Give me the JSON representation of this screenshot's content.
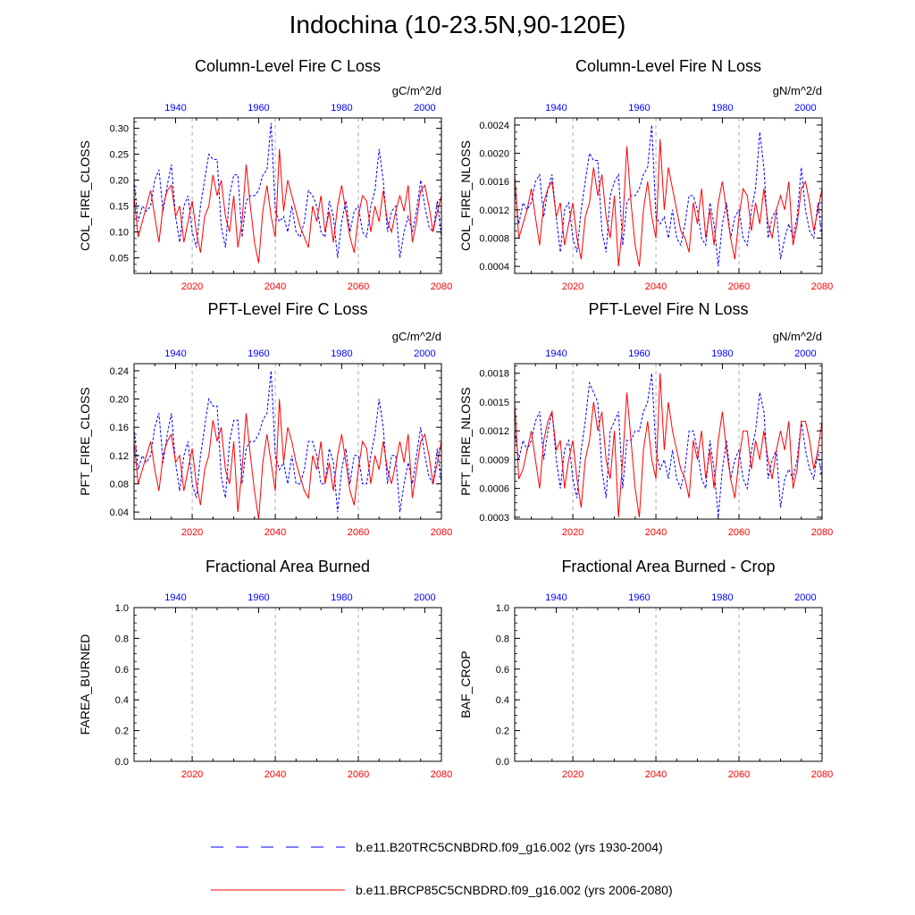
{
  "title": "Indochina (10-23.5N,90-120E)",
  "colors": {
    "blue": "#0000ff",
    "red": "#ff0000",
    "grid": "#999999"
  },
  "legend": {
    "blue_label": "b.e11.B20TRC5CNBDRD.f09_g16.002 (yrs 1930-2004)",
    "red_label": "b.e11.BRCP85C5CNBDRD.f09_g16.002 (yrs 2006-2080)"
  },
  "chart_data": [
    {
      "type": "line",
      "title": "Column-Level Fire C Loss",
      "units": "gC/m^2/d",
      "ylabel": "COL_FIRE_CLOSS",
      "ylim": [
        0.02,
        0.32
      ],
      "yticks": [
        0.05,
        0.1,
        0.15,
        0.2,
        0.25,
        0.3
      ],
      "ytick_labels": [
        "0.05",
        "0.10",
        "0.15",
        "0.20",
        "0.25",
        "0.30"
      ],
      "x_bottom": {
        "label_color": "red",
        "range": [
          2006,
          2080
        ],
        "ticks": [
          2020,
          2040,
          2060,
          2080
        ]
      },
      "x_top": {
        "label_color": "blue",
        "range": [
          1930,
          2004
        ],
        "ticks": [
          1940,
          1960,
          1980,
          2000
        ]
      },
      "gridlines_x": [
        2020,
        2040,
        2060
      ],
      "series": [
        {
          "color": "blue",
          "dash": true,
          "values": [
            0.2,
            0.12,
            0.15,
            0.14,
            0.15,
            0.2,
            0.22,
            0.14,
            0.19,
            0.23,
            0.13,
            0.08,
            0.15,
            0.17,
            0.1,
            0.07,
            0.15,
            0.2,
            0.25,
            0.24,
            0.24,
            0.11,
            0.07,
            0.17,
            0.21,
            0.21,
            0.09,
            0.16,
            0.17,
            0.17,
            0.18,
            0.21,
            0.22,
            0.31,
            0.14,
            0.12,
            0.13,
            0.1,
            0.15,
            0.1,
            0.09,
            0.12,
            0.18,
            0.17,
            0.15,
            0.1,
            0.09,
            0.16,
            0.13,
            0.05,
            0.12,
            0.16,
            0.1,
            0.14,
            0.15,
            0.1,
            0.09,
            0.15,
            0.18,
            0.26,
            0.2,
            0.1,
            0.14,
            0.15,
            0.05,
            0.1,
            0.13,
            0.1,
            0.14,
            0.2,
            0.15,
            0.11,
            0.1,
            0.16,
            0.09
          ]
        },
        {
          "color": "red",
          "dash": false,
          "values": [
            0.17,
            0.09,
            0.12,
            0.15,
            0.18,
            0.13,
            0.08,
            0.15,
            0.18,
            0.19,
            0.13,
            0.15,
            0.08,
            0.12,
            0.16,
            0.1,
            0.06,
            0.13,
            0.15,
            0.21,
            0.17,
            0.2,
            0.13,
            0.1,
            0.17,
            0.07,
            0.12,
            0.23,
            0.15,
            0.08,
            0.04,
            0.14,
            0.19,
            0.13,
            0.09,
            0.26,
            0.14,
            0.2,
            0.17,
            0.14,
            0.11,
            0.09,
            0.07,
            0.15,
            0.12,
            0.17,
            0.1,
            0.14,
            0.08,
            0.15,
            0.19,
            0.14,
            0.09,
            0.06,
            0.13,
            0.17,
            0.16,
            0.1,
            0.15,
            0.12,
            0.18,
            0.12,
            0.1,
            0.14,
            0.17,
            0.14,
            0.19,
            0.08,
            0.12,
            0.18,
            0.19,
            0.15,
            0.1,
            0.14,
            0.17
          ]
        }
      ]
    },
    {
      "type": "line",
      "title": "Column-Level Fire N Loss",
      "units": "gN/m^2/d",
      "ylabel": "COL_FIRE_NLOSS",
      "ylim": [
        0.0003,
        0.0025
      ],
      "yticks": [
        0.0004,
        0.0008,
        0.0012,
        0.0016,
        0.002,
        0.0024
      ],
      "ytick_labels": [
        "0.0004",
        "0.0008",
        "0.0012",
        "0.0016",
        "0.0020",
        "0.0024"
      ],
      "x_bottom": {
        "label_color": "red",
        "range": [
          2006,
          2080
        ],
        "ticks": [
          2020,
          2040,
          2060,
          2080
        ]
      },
      "x_top": {
        "label_color": "blue",
        "range": [
          1930,
          2004
        ],
        "ticks": [
          1940,
          1960,
          1980,
          2000
        ]
      },
      "gridlines_x": [
        2020,
        2040,
        2060
      ],
      "series": [
        {
          "color": "blue",
          "dash": true,
          "values": [
            0.0015,
            0.001,
            0.0013,
            0.0012,
            0.0013,
            0.0016,
            0.0017,
            0.0011,
            0.0015,
            0.0017,
            0.0011,
            0.0006,
            0.0012,
            0.0013,
            0.0008,
            0.0006,
            0.0012,
            0.0016,
            0.002,
            0.0019,
            0.0019,
            0.0009,
            0.0006,
            0.0014,
            0.0016,
            0.0017,
            0.0007,
            0.0013,
            0.0014,
            0.0014,
            0.0015,
            0.0017,
            0.0018,
            0.0024,
            0.0011,
            0.001,
            0.0011,
            0.0008,
            0.0012,
            0.0008,
            0.0007,
            0.001,
            0.0014,
            0.0014,
            0.0012,
            0.0008,
            0.0007,
            0.0013,
            0.001,
            0.0004,
            0.001,
            0.0013,
            0.0008,
            0.0011,
            0.0012,
            0.0008,
            0.0007,
            0.0012,
            0.0015,
            0.0023,
            0.0018,
            0.0008,
            0.0011,
            0.0012,
            0.0005,
            0.0008,
            0.001,
            0.0008,
            0.0011,
            0.0018,
            0.0012,
            0.0009,
            0.0008,
            0.0013,
            0.0008
          ]
        },
        {
          "color": "red",
          "dash": false,
          "values": [
            0.0017,
            0.0008,
            0.001,
            0.0012,
            0.0015,
            0.0011,
            0.0007,
            0.0013,
            0.0015,
            0.0016,
            0.0011,
            0.0013,
            0.0007,
            0.001,
            0.0013,
            0.0008,
            0.0005,
            0.0011,
            0.0013,
            0.0018,
            0.0014,
            0.0017,
            0.0011,
            0.0008,
            0.0014,
            0.0004,
            0.001,
            0.0021,
            0.0013,
            0.0007,
            0.0004,
            0.0012,
            0.0016,
            0.0011,
            0.0008,
            0.0022,
            0.0012,
            0.0018,
            0.0015,
            0.0012,
            0.0009,
            0.0008,
            0.0006,
            0.0013,
            0.001,
            0.0015,
            0.0008,
            0.0012,
            0.0007,
            0.0013,
            0.0016,
            0.0012,
            0.0008,
            0.0005,
            0.0011,
            0.0015,
            0.0014,
            0.0009,
            0.0013,
            0.001,
            0.0015,
            0.001,
            0.0008,
            0.0012,
            0.0014,
            0.0012,
            0.0016,
            0.0007,
            0.001,
            0.0015,
            0.0016,
            0.0013,
            0.0009,
            0.0012,
            0.0015
          ]
        }
      ]
    },
    {
      "type": "line",
      "title": "PFT-Level Fire C Loss",
      "units": "gC/m^2/d",
      "ylabel": "PFT_FIRE_CLOSS",
      "ylim": [
        0.03,
        0.25
      ],
      "yticks": [
        0.04,
        0.08,
        0.12,
        0.16,
        0.2,
        0.24
      ],
      "ytick_labels": [
        "0.04",
        "0.08",
        "0.12",
        "0.16",
        "0.20",
        "0.24"
      ],
      "x_bottom": {
        "label_color": "red",
        "range": [
          2006,
          2080
        ],
        "ticks": [
          2020,
          2040,
          2060,
          2080
        ]
      },
      "x_top": {
        "label_color": "blue",
        "range": [
          1930,
          2004
        ],
        "ticks": [
          1940,
          1960,
          1980,
          2000
        ]
      },
      "gridlines_x": [
        2020,
        2040,
        2060
      ],
      "series": [
        {
          "color": "blue",
          "dash": true,
          "values": [
            0.16,
            0.1,
            0.12,
            0.11,
            0.12,
            0.16,
            0.18,
            0.11,
            0.15,
            0.18,
            0.11,
            0.07,
            0.12,
            0.14,
            0.08,
            0.06,
            0.12,
            0.16,
            0.2,
            0.19,
            0.19,
            0.09,
            0.06,
            0.14,
            0.17,
            0.17,
            0.08,
            0.13,
            0.14,
            0.14,
            0.15,
            0.17,
            0.18,
            0.24,
            0.12,
            0.1,
            0.11,
            0.08,
            0.12,
            0.08,
            0.08,
            0.1,
            0.14,
            0.14,
            0.12,
            0.08,
            0.08,
            0.13,
            0.11,
            0.04,
            0.1,
            0.13,
            0.08,
            0.12,
            0.12,
            0.08,
            0.08,
            0.12,
            0.15,
            0.2,
            0.16,
            0.08,
            0.12,
            0.12,
            0.04,
            0.08,
            0.11,
            0.08,
            0.12,
            0.16,
            0.12,
            0.09,
            0.08,
            0.13,
            0.08
          ]
        },
        {
          "color": "red",
          "dash": false,
          "values": [
            0.14,
            0.08,
            0.1,
            0.12,
            0.14,
            0.1,
            0.07,
            0.12,
            0.14,
            0.15,
            0.11,
            0.12,
            0.07,
            0.1,
            0.13,
            0.08,
            0.05,
            0.1,
            0.12,
            0.17,
            0.14,
            0.16,
            0.1,
            0.08,
            0.14,
            0.04,
            0.1,
            0.18,
            0.12,
            0.07,
            0.03,
            0.11,
            0.15,
            0.11,
            0.07,
            0.2,
            0.11,
            0.16,
            0.14,
            0.11,
            0.09,
            0.07,
            0.06,
            0.12,
            0.1,
            0.14,
            0.08,
            0.11,
            0.07,
            0.12,
            0.15,
            0.11,
            0.07,
            0.05,
            0.1,
            0.14,
            0.13,
            0.08,
            0.12,
            0.1,
            0.14,
            0.1,
            0.08,
            0.11,
            0.14,
            0.11,
            0.15,
            0.06,
            0.1,
            0.14,
            0.15,
            0.12,
            0.08,
            0.11,
            0.14
          ]
        }
      ]
    },
    {
      "type": "line",
      "title": "PFT-Level Fire N Loss",
      "units": "gN/m^2/d",
      "ylabel": "PFT_FIRE_NLOSS",
      "ylim": [
        0.00028,
        0.0019
      ],
      "yticks": [
        0.0003,
        0.0006,
        0.0009,
        0.0012,
        0.0015,
        0.0018
      ],
      "ytick_labels": [
        "0.0003",
        "0.0006",
        "0.0009",
        "0.0012",
        "0.0015",
        "0.0018"
      ],
      "x_bottom": {
        "label_color": "red",
        "range": [
          2006,
          2080
        ],
        "ticks": [
          2020,
          2040,
          2060,
          2080
        ]
      },
      "x_top": {
        "label_color": "blue",
        "range": [
          1930,
          2004
        ],
        "ticks": [
          1940,
          1960,
          1980,
          2000
        ]
      },
      "gridlines_x": [
        2020,
        2040,
        2060
      ],
      "series": [
        {
          "color": "blue",
          "dash": true,
          "values": [
            0.0012,
            0.0009,
            0.0011,
            0.001,
            0.0011,
            0.0013,
            0.0014,
            0.0009,
            0.0012,
            0.0014,
            0.0009,
            0.0006,
            0.001,
            0.0011,
            0.0007,
            0.0005,
            0.001,
            0.0013,
            0.0017,
            0.0016,
            0.0015,
            0.0008,
            0.0005,
            0.0012,
            0.0013,
            0.0014,
            0.0006,
            0.0011,
            0.0011,
            0.0012,
            0.0012,
            0.0014,
            0.0015,
            0.0018,
            0.001,
            0.0008,
            0.0009,
            0.0007,
            0.001,
            0.0007,
            0.0006,
            0.0008,
            0.0012,
            0.0012,
            0.001,
            0.0007,
            0.0006,
            0.0011,
            0.0008,
            0.0003,
            0.0008,
            0.0011,
            0.0007,
            0.0009,
            0.001,
            0.0007,
            0.0006,
            0.001,
            0.0012,
            0.0016,
            0.0014,
            0.0007,
            0.0009,
            0.001,
            0.0004,
            0.0007,
            0.0008,
            0.0007,
            0.0009,
            0.0013,
            0.001,
            0.0008,
            0.0007,
            0.001,
            0.0007
          ]
        },
        {
          "color": "red",
          "dash": false,
          "values": [
            0.0015,
            0.0007,
            0.0008,
            0.001,
            0.0012,
            0.0009,
            0.0006,
            0.0011,
            0.0013,
            0.0014,
            0.001,
            0.0011,
            0.0006,
            0.0009,
            0.0011,
            0.0007,
            0.0004,
            0.0009,
            0.0011,
            0.0015,
            0.0012,
            0.0014,
            0.0009,
            0.0007,
            0.0012,
            0.0003,
            0.0009,
            0.0016,
            0.0011,
            0.0006,
            0.0003,
            0.001,
            0.0013,
            0.0009,
            0.0007,
            0.0018,
            0.001,
            0.0015,
            0.0012,
            0.001,
            0.0008,
            0.0007,
            0.0005,
            0.0011,
            0.0009,
            0.0012,
            0.0007,
            0.001,
            0.0006,
            0.0011,
            0.0014,
            0.001,
            0.0007,
            0.0005,
            0.0009,
            0.0012,
            0.0012,
            0.0008,
            0.0011,
            0.0009,
            0.0012,
            0.0009,
            0.0007,
            0.001,
            0.0012,
            0.001,
            0.0013,
            0.0006,
            0.0008,
            0.0013,
            0.0013,
            0.0011,
            0.0008,
            0.001,
            0.0013
          ]
        }
      ]
    },
    {
      "type": "line",
      "title": "Fractional Area Burned",
      "units": "",
      "ylabel": "FAREA_BURNED",
      "ylim": [
        0,
        1
      ],
      "yticks": [
        0.0,
        0.2,
        0.4,
        0.6,
        0.8,
        1.0
      ],
      "ytick_labels": [
        "0.0",
        "0.2",
        "0.4",
        "0.6",
        "0.8",
        "1.0"
      ],
      "x_bottom": {
        "label_color": "red",
        "range": [
          2006,
          2080
        ],
        "ticks": [
          2020,
          2040,
          2060,
          2080
        ]
      },
      "x_top": {
        "label_color": "blue",
        "range": [
          1930,
          2004
        ],
        "ticks": [
          1940,
          1960,
          1980,
          2000
        ]
      },
      "gridlines_x": [
        2020,
        2040,
        2060
      ],
      "series": []
    },
    {
      "type": "line",
      "title": "Fractional Area Burned - Crop",
      "units": "",
      "ylabel": "BAF_CROP",
      "ylim": [
        0,
        1
      ],
      "yticks": [
        0.0,
        0.2,
        0.4,
        0.6,
        0.8,
        1.0
      ],
      "ytick_labels": [
        "0.0",
        "0.2",
        "0.4",
        "0.6",
        "0.8",
        "1.0"
      ],
      "x_bottom": {
        "label_color": "red",
        "range": [
          2006,
          2080
        ],
        "ticks": [
          2020,
          2040,
          2060,
          2080
        ]
      },
      "x_top": {
        "label_color": "blue",
        "range": [
          1930,
          2004
        ],
        "ticks": [
          1940,
          1960,
          1980,
          2000
        ]
      },
      "gridlines_x": [
        2020,
        2040,
        2060
      ],
      "series": []
    }
  ]
}
